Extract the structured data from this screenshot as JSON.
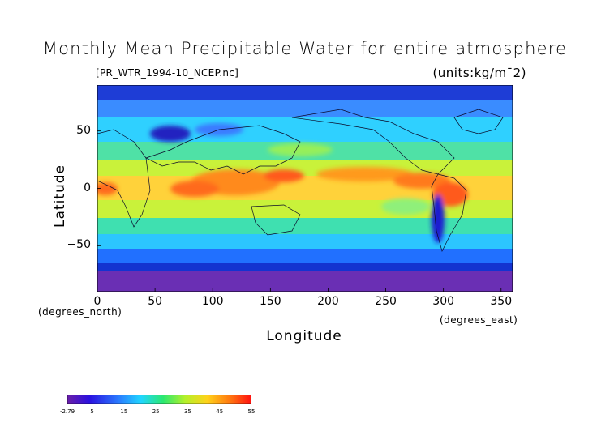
{
  "chart_data": {
    "type": "heatmap",
    "title": "Monthly Mean Precipitable Water for entire atmosphere",
    "source_label": "[PR_WTR_1994-10_NCEP.nc]",
    "units_label": "(units:kg/m¯2)",
    "xlabel": "Longitude",
    "ylabel": "Latitude",
    "x_unit_note": "(degrees_east)",
    "y_unit_note": "(degrees_north)",
    "xlim": [
      0,
      360
    ],
    "ylim": [
      -90,
      90
    ],
    "x_ticks": [
      "0",
      "50",
      "100",
      "150",
      "200",
      "250",
      "300",
      "350"
    ],
    "x_tick_values": [
      0,
      50,
      100,
      150,
      200,
      250,
      300,
      350
    ],
    "y_ticks": [
      "50",
      "0",
      "−50"
    ],
    "y_tick_values": [
      50,
      0,
      -50
    ],
    "colorbar": {
      "min": -2.79,
      "max": 55,
      "tick_labels": [
        "-2.79",
        "5",
        "15",
        "25",
        "35",
        "45",
        "55"
      ],
      "tick_values": [
        -2.79,
        5,
        15,
        25,
        35,
        45,
        55
      ]
    },
    "grid": false
  }
}
